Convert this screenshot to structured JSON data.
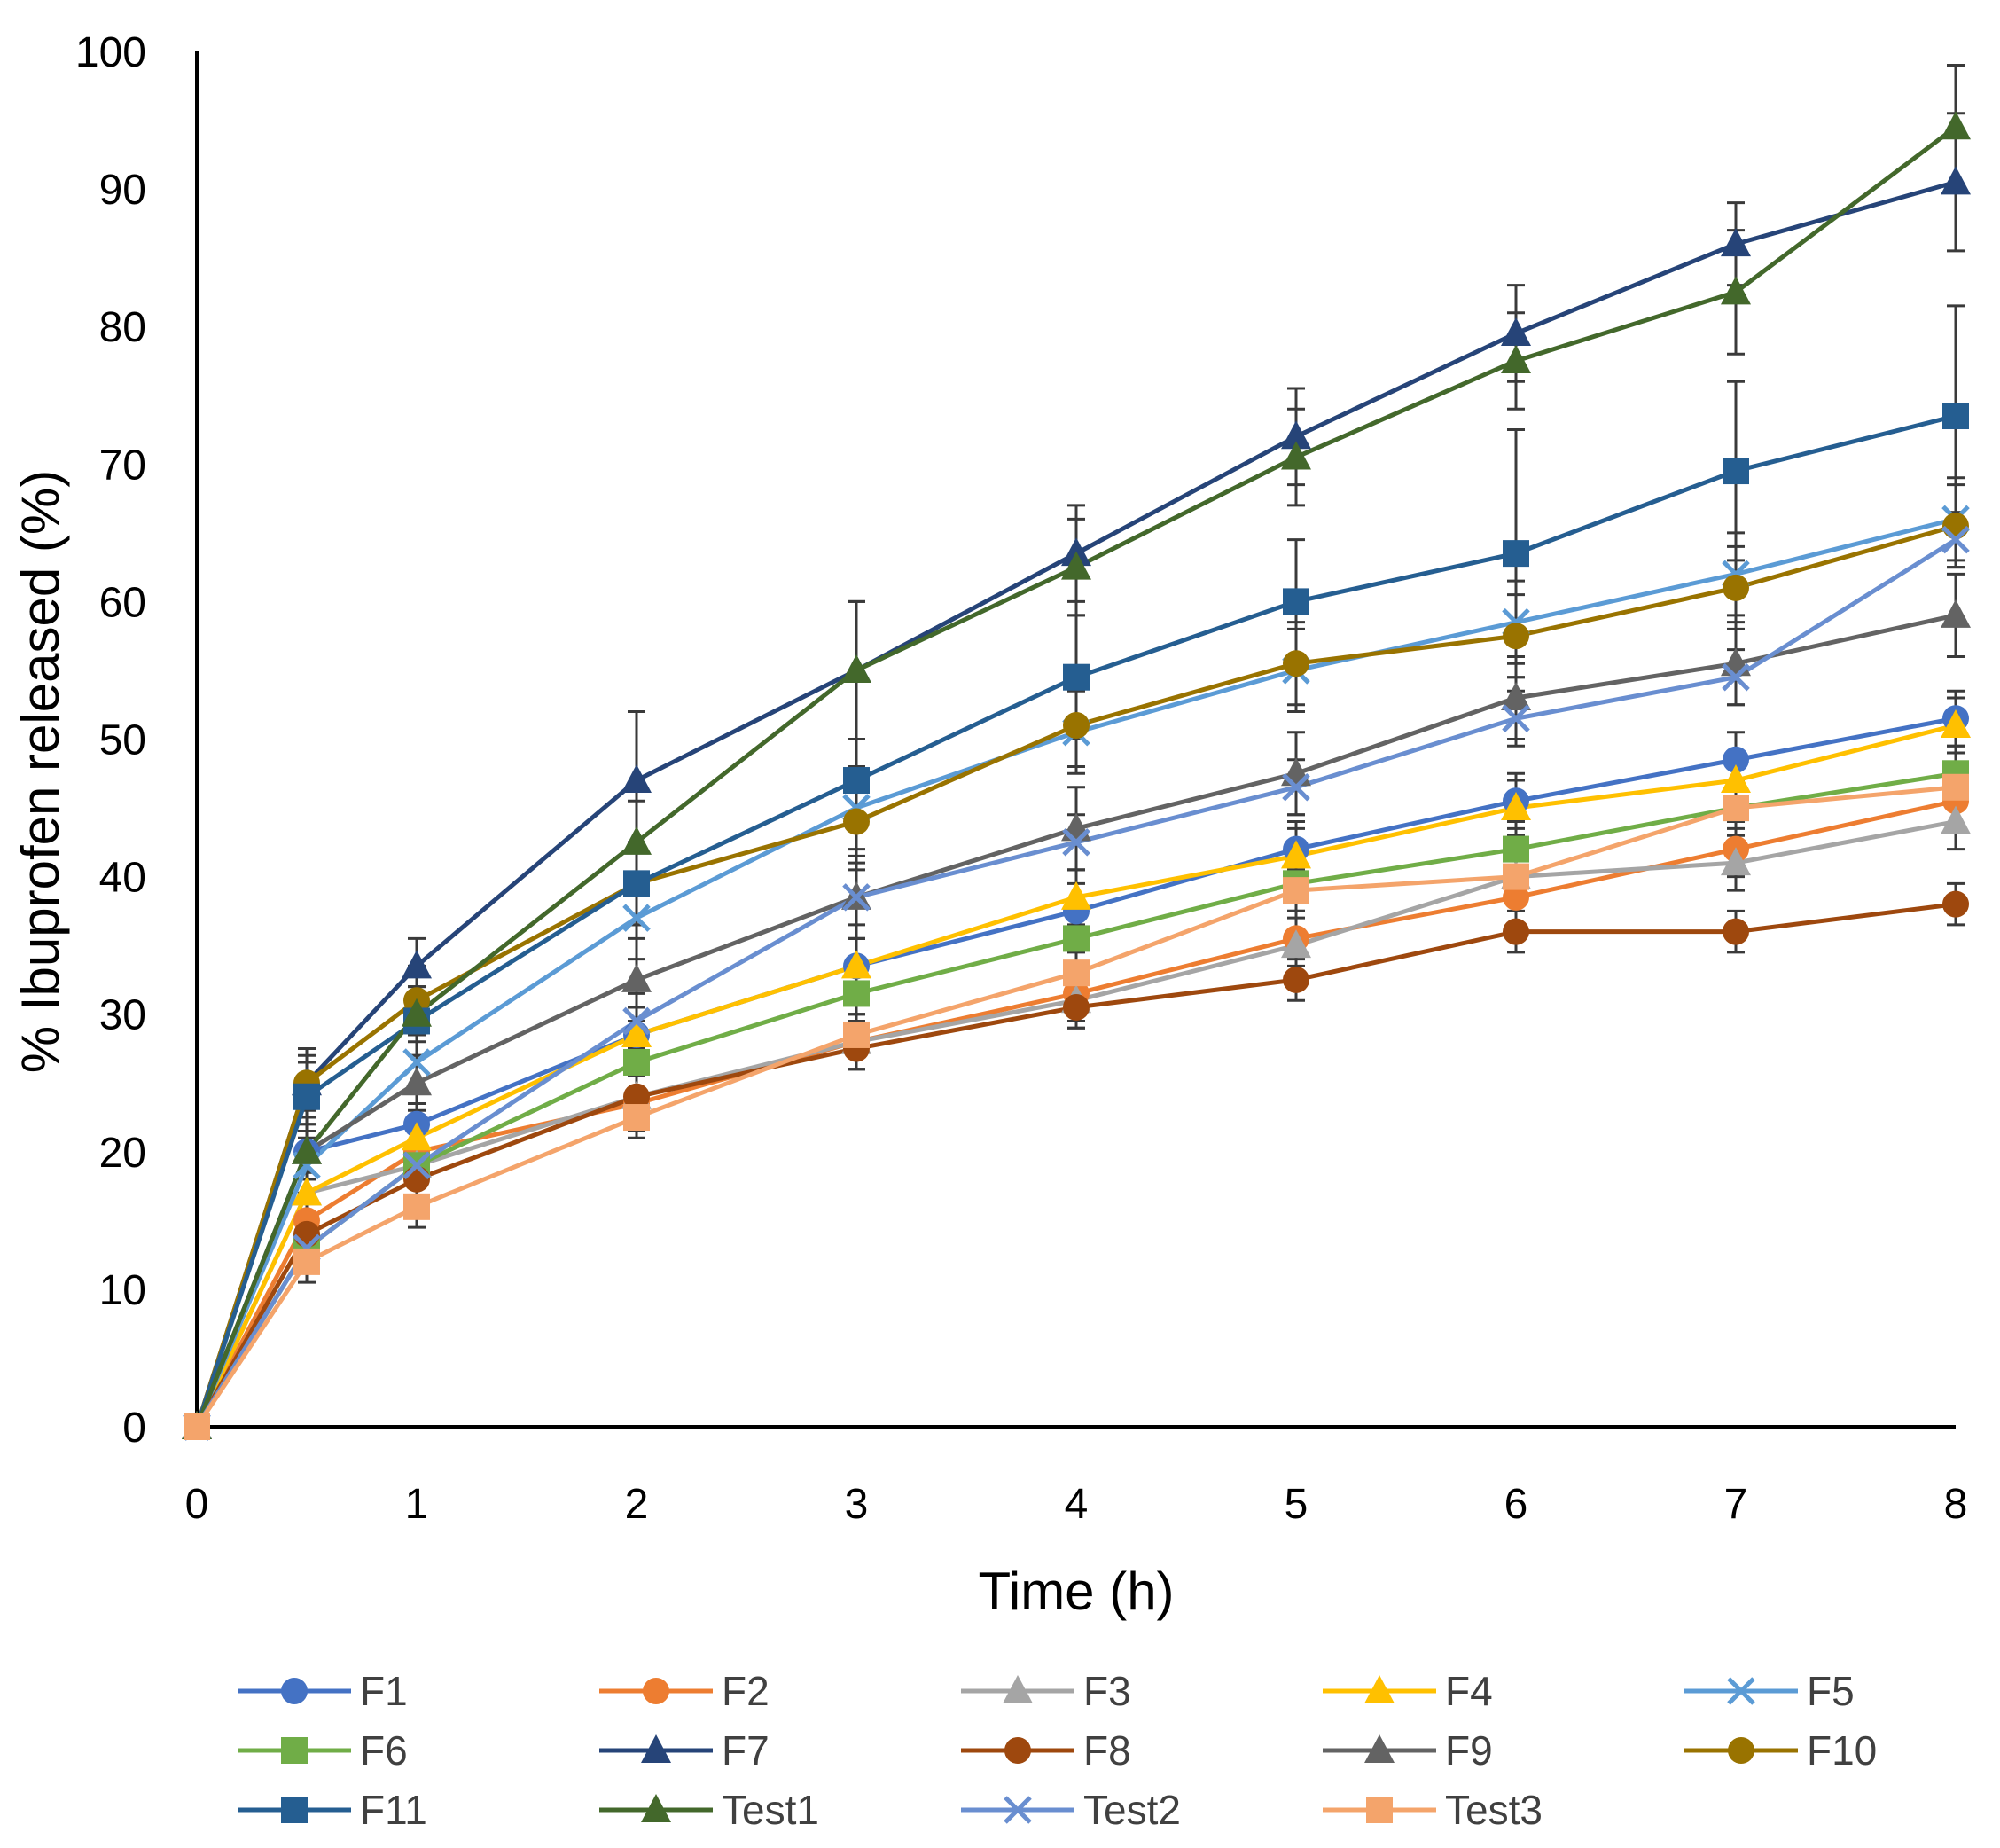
{
  "chart_data": {
    "type": "line",
    "xlabel": "Time (h)",
    "ylabel": "% Ibuprofen released (%)",
    "xlim": [
      0,
      8
    ],
    "ylim": [
      0,
      100
    ],
    "x_ticks": [
      0,
      1,
      2,
      3,
      4,
      5,
      6,
      7,
      8
    ],
    "y_ticks": [
      0,
      10,
      20,
      30,
      40,
      50,
      60,
      70,
      80,
      90,
      100
    ],
    "grid": false,
    "legend_position": "bottom",
    "x": [
      0,
      0.5,
      1,
      2,
      3,
      4,
      5,
      6,
      7,
      8
    ],
    "series": [
      {
        "name": "F1",
        "color": "#4472C4",
        "marker": "circle",
        "values": [
          0,
          20,
          22,
          28.5,
          33.5,
          37.5,
          42,
          45.5,
          48.5,
          51.5
        ],
        "error": [
          0,
          1.5,
          1.5,
          2,
          2,
          2,
          2,
          2,
          2,
          2
        ]
      },
      {
        "name": "F2",
        "color": "#ED7D31",
        "marker": "circle",
        "values": [
          0,
          15,
          20,
          23.5,
          28,
          31.5,
          35.5,
          38.5,
          42,
          45.5
        ],
        "error": [
          0,
          1.5,
          1.5,
          2,
          2,
          2,
          2,
          2,
          2,
          2
        ]
      },
      {
        "name": "F3",
        "color": "#A5A5A5",
        "marker": "triangle",
        "values": [
          0,
          17,
          19,
          24,
          28,
          31,
          35,
          40,
          41,
          44
        ],
        "error": [
          0,
          1.5,
          1.5,
          2,
          2,
          2,
          2,
          2,
          2,
          2
        ]
      },
      {
        "name": "F4",
        "color": "#FFC000",
        "marker": "triangle",
        "values": [
          0,
          17,
          21,
          28.5,
          33.5,
          38.5,
          41.5,
          45,
          47,
          51
        ],
        "error": [
          0,
          1.5,
          1.5,
          2,
          2,
          2,
          2,
          2,
          2,
          2
        ]
      },
      {
        "name": "F5",
        "color": "#5B9BD5",
        "marker": "x",
        "values": [
          0,
          19,
          26.5,
          37,
          45,
          50.5,
          55,
          58.5,
          62,
          66
        ],
        "error": [
          0,
          2,
          2,
          3,
          3,
          3,
          3,
          3,
          3,
          3
        ]
      },
      {
        "name": "F6",
        "color": "#70AD47",
        "marker": "square",
        "values": [
          0,
          13,
          19,
          26.5,
          31.5,
          35.5,
          39.5,
          42,
          45,
          47.5
        ],
        "error": [
          0,
          1.5,
          1.5,
          2,
          2,
          2,
          2,
          2,
          2,
          2
        ]
      },
      {
        "name": "F7",
        "color": "#264478",
        "marker": "triangle",
        "values": [
          0,
          25,
          33.5,
          47,
          55,
          63.5,
          72,
          79.5,
          86,
          90.5
        ],
        "error": [
          0,
          2,
          2,
          5,
          5,
          3.5,
          3.5,
          3.5,
          3,
          5
        ]
      },
      {
        "name": "F8",
        "color": "#9E480E",
        "marker": "circle",
        "values": [
          0,
          14,
          18,
          24,
          27.5,
          30.5,
          32.5,
          36,
          36,
          38
        ],
        "error": [
          0,
          1.5,
          1.5,
          1.5,
          1.5,
          1.5,
          1.5,
          1.5,
          1.5,
          1.5
        ]
      },
      {
        "name": "F9",
        "color": "#636363",
        "marker": "triangle",
        "values": [
          0,
          20,
          25,
          32.5,
          38.5,
          43.5,
          47.5,
          53,
          55.5,
          59
        ],
        "error": [
          0,
          2,
          2,
          3,
          3,
          3,
          3,
          3,
          3,
          3
        ]
      },
      {
        "name": "F10",
        "color": "#997300",
        "marker": "circle",
        "values": [
          0,
          25,
          31,
          39.5,
          44,
          51,
          55.5,
          57.5,
          61,
          65.5
        ],
        "error": [
          0,
          2.5,
          2.5,
          3,
          3,
          3,
          3,
          3,
          3,
          3
        ]
      },
      {
        "name": "F11",
        "color": "#255E91",
        "marker": "square",
        "values": [
          0,
          24,
          29.5,
          39.5,
          47,
          54.5,
          60,
          63.5,
          69.5,
          73.5
        ],
        "error": [
          0,
          2.5,
          2.5,
          3,
          3,
          4.5,
          4.5,
          9,
          6.5,
          8
        ]
      },
      {
        "name": "Test1",
        "color": "#43682B",
        "marker": "triangle",
        "values": [
          0,
          20,
          30,
          42.5,
          55,
          62.5,
          70.5,
          77.5,
          82.5,
          94.5
        ],
        "error": [
          0,
          2,
          2,
          3,
          5,
          3.5,
          3.5,
          3.5,
          4.5,
          4.5
        ]
      },
      {
        "name": "Test2",
        "color": "#698ED0",
        "marker": "x",
        "values": [
          0,
          13,
          19,
          29.5,
          38.5,
          42.5,
          46.5,
          51.5,
          54.5,
          64.5
        ],
        "error": [
          0,
          1.5,
          1.5,
          2,
          2,
          2,
          2,
          2,
          2,
          2
        ]
      },
      {
        "name": "Test3",
        "color": "#F4A46B",
        "marker": "square",
        "values": [
          0,
          12,
          16,
          22.5,
          28.5,
          33,
          39,
          40,
          45,
          46.5
        ],
        "error": [
          0,
          1.5,
          1.5,
          1.5,
          1.5,
          1.5,
          1.5,
          1.5,
          1.5,
          1.5
        ]
      }
    ]
  }
}
